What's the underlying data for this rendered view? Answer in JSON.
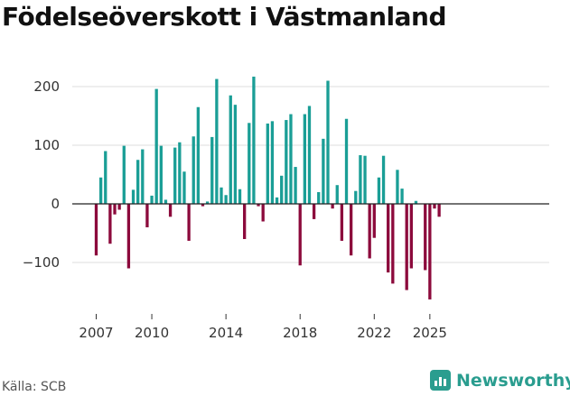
{
  "title": "Födelseöverskott i Västmanland",
  "source": "Källa: SCB",
  "brand": "Newsworthy",
  "colors": {
    "positive": "#1a9e96",
    "negative": "#8c0a3c",
    "grid": "#dddddd",
    "axis": "#222222",
    "brand": "#2a9d8f"
  },
  "chart_data": {
    "type": "bar",
    "title": "Födelseöverskott i Västmanland",
    "xlabel": "",
    "ylabel": "",
    "ylim": [
      -180,
      240
    ],
    "yticks": [
      200,
      100,
      0,
      -100
    ],
    "ytick_labels": [
      "200",
      "100",
      "0",
      "−100"
    ],
    "xticks": [
      2007,
      2010,
      2014,
      2018,
      2022,
      2025
    ],
    "x_start": 2007,
    "periods_per_year": 4,
    "values": [
      -88,
      45,
      90,
      -68,
      -18,
      -10,
      99,
      -110,
      24,
      75,
      93,
      -40,
      14,
      196,
      99,
      7,
      -22,
      96,
      105,
      55,
      -63,
      115,
      165,
      -4,
      4,
      114,
      213,
      28,
      15,
      185,
      169,
      25,
      -60,
      138,
      217,
      -4,
      -30,
      137,
      141,
      11,
      48,
      143,
      153,
      63,
      -105,
      153,
      167,
      -26,
      20,
      111,
      210,
      -8,
      32,
      -63,
      145,
      -88,
      22,
      83,
      82,
      -93,
      -58,
      45,
      82,
      -117,
      -136,
      58,
      26,
      -147,
      -110,
      5,
      0,
      -113,
      -163,
      -8,
      -22
    ]
  }
}
